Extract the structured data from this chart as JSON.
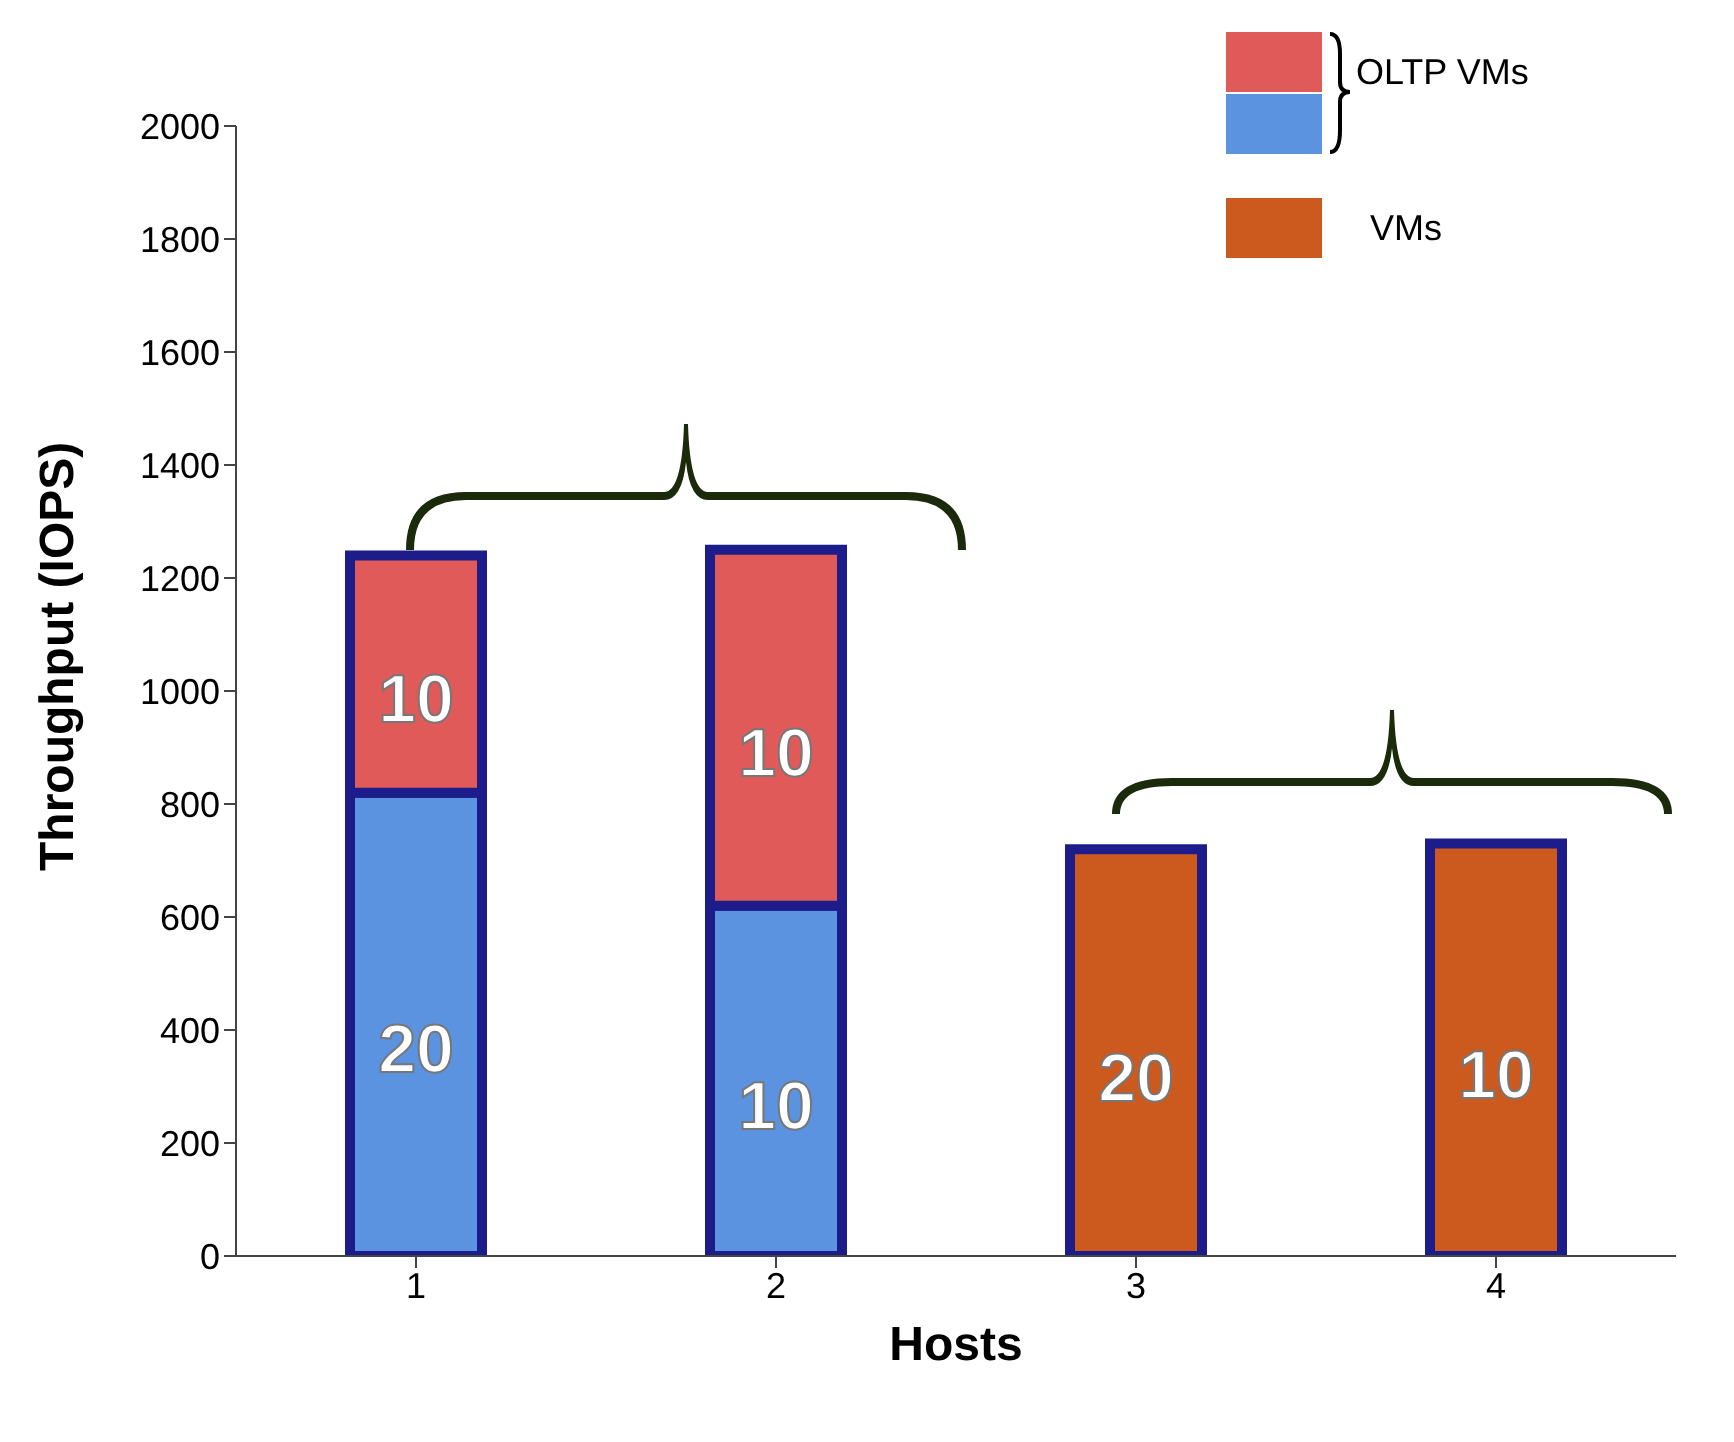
{
  "chart_data": {
    "type": "bar",
    "stacked": true,
    "xlabel": "Hosts",
    "ylabel": "Throughput (IOPS)",
    "categories": [
      "1",
      "2",
      "3",
      "4"
    ],
    "series": [
      {
        "color": "#5b93e0",
        "values": [
          820,
          620,
          null,
          null
        ]
      },
      {
        "name": "OLTP VMs",
        "color": "#e05a5a",
        "values": [
          420,
          630,
          null,
          null
        ]
      },
      {
        "name": "VMs",
        "color": "#cc5a1e",
        "values": [
          null,
          null,
          720,
          730
        ]
      }
    ],
    "ylim": [
      0,
      2000
    ],
    "yticks": [
      0,
      200,
      400,
      600,
      800,
      1000,
      1200,
      1400,
      1600,
      1800,
      2000
    ],
    "grid": false,
    "legend": "top right",
    "annotations": [
      "20",
      "10",
      "10",
      "10",
      "20",
      "10"
    ]
  }
}
